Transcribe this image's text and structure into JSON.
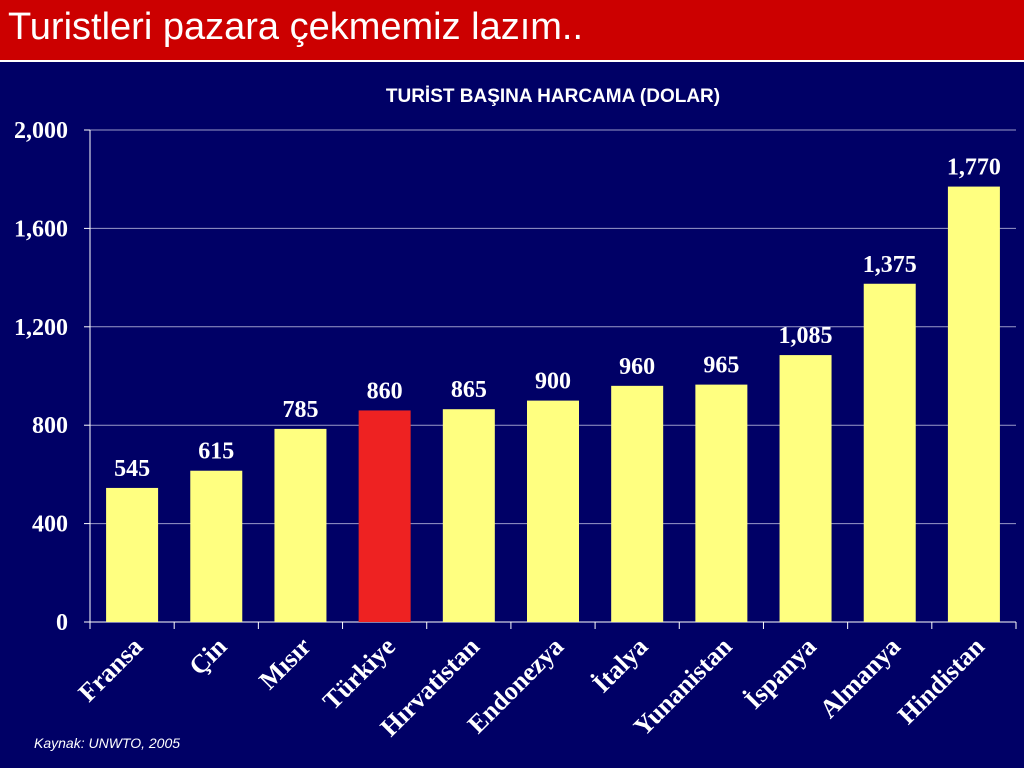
{
  "slide": {
    "title": "Turistleri pazara çekmemiz lazım..",
    "source": "Kaynak: UNWTO, 2005"
  },
  "colors": {
    "background": "#000066",
    "title_bar": "#cc0000",
    "bar": "#ffff80",
    "highlight_bar": "#ee2222",
    "text": "#ffffff"
  },
  "chart_data": {
    "type": "bar",
    "title": "TURİST BAŞINA HARCAMA (DOLAR)",
    "categories": [
      "Fransa",
      "Çin",
      "Mısır",
      "Türkiye",
      "Hırvatistan",
      "Endonezya",
      "İtalya",
      "Yunanistan",
      "İspanya",
      "Almanya",
      "Hindistan"
    ],
    "values": [
      545,
      615,
      785,
      860,
      865,
      900,
      960,
      965,
      1085,
      1375,
      1770
    ],
    "value_labels": [
      "545",
      "615",
      "785",
      "860",
      "865",
      "900",
      "960",
      "965",
      "1,085",
      "1,375",
      "1,770"
    ],
    "highlight_index": 3,
    "ylim": [
      0,
      2000
    ],
    "yticks": [
      0,
      400,
      800,
      1200,
      1600,
      2000
    ],
    "ytick_labels": [
      "0",
      "400",
      "800",
      "1,200",
      "1,600",
      "2,000"
    ],
    "grid": true,
    "legend": "none"
  }
}
